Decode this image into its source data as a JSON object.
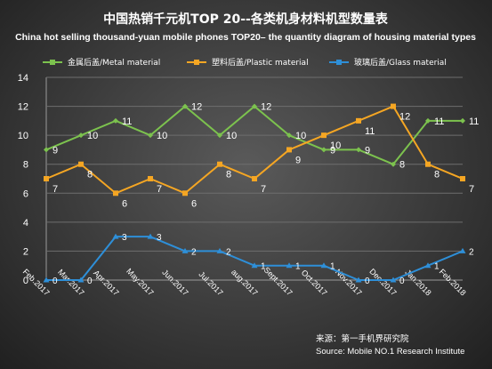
{
  "chart_data": {
    "type": "line",
    "title": "中国热销千元机TOP 20--各类机身材料机型数量表",
    "subtitle": "China hot selling thousand-yuan mobile phones TOP20– the quantity diagram of housing material types",
    "categories": [
      "Feb.2017",
      "Mar.2017",
      "Apr.2017",
      "May.2017",
      "Jun.2017",
      "Jul.2017",
      "aug.2017",
      "Sept.2017",
      "Oct.2017",
      "Nov.2017",
      "Dec.2017",
      "Jan.2018",
      "Feb.2018"
    ],
    "ylim": [
      0,
      14
    ],
    "yticks": [
      0,
      2,
      4,
      6,
      8,
      10,
      12,
      14
    ],
    "grid": true,
    "legend_position": "top",
    "series": [
      {
        "name": "金属后盖/Metal material",
        "color": "#7cc24e",
        "values": [
          9,
          10,
          11,
          10,
          12,
          10,
          12,
          10,
          9,
          9,
          8,
          11,
          11
        ]
      },
      {
        "name": "塑料后盖/Plastic material",
        "color": "#f5a623",
        "values": [
          7,
          8,
          6,
          7,
          6,
          8,
          7,
          9,
          10,
          11,
          12,
          8,
          7
        ]
      },
      {
        "name": "玻璃后盖/Glass material",
        "color": "#2e8fd8",
        "values": [
          0,
          0,
          3,
          3,
          2,
          2,
          1,
          1,
          1,
          0,
          0,
          1,
          2
        ]
      }
    ],
    "source_cn": "来源：第一手机界研究院",
    "source_en": "Source: Mobile NO.1 Research Institute"
  }
}
